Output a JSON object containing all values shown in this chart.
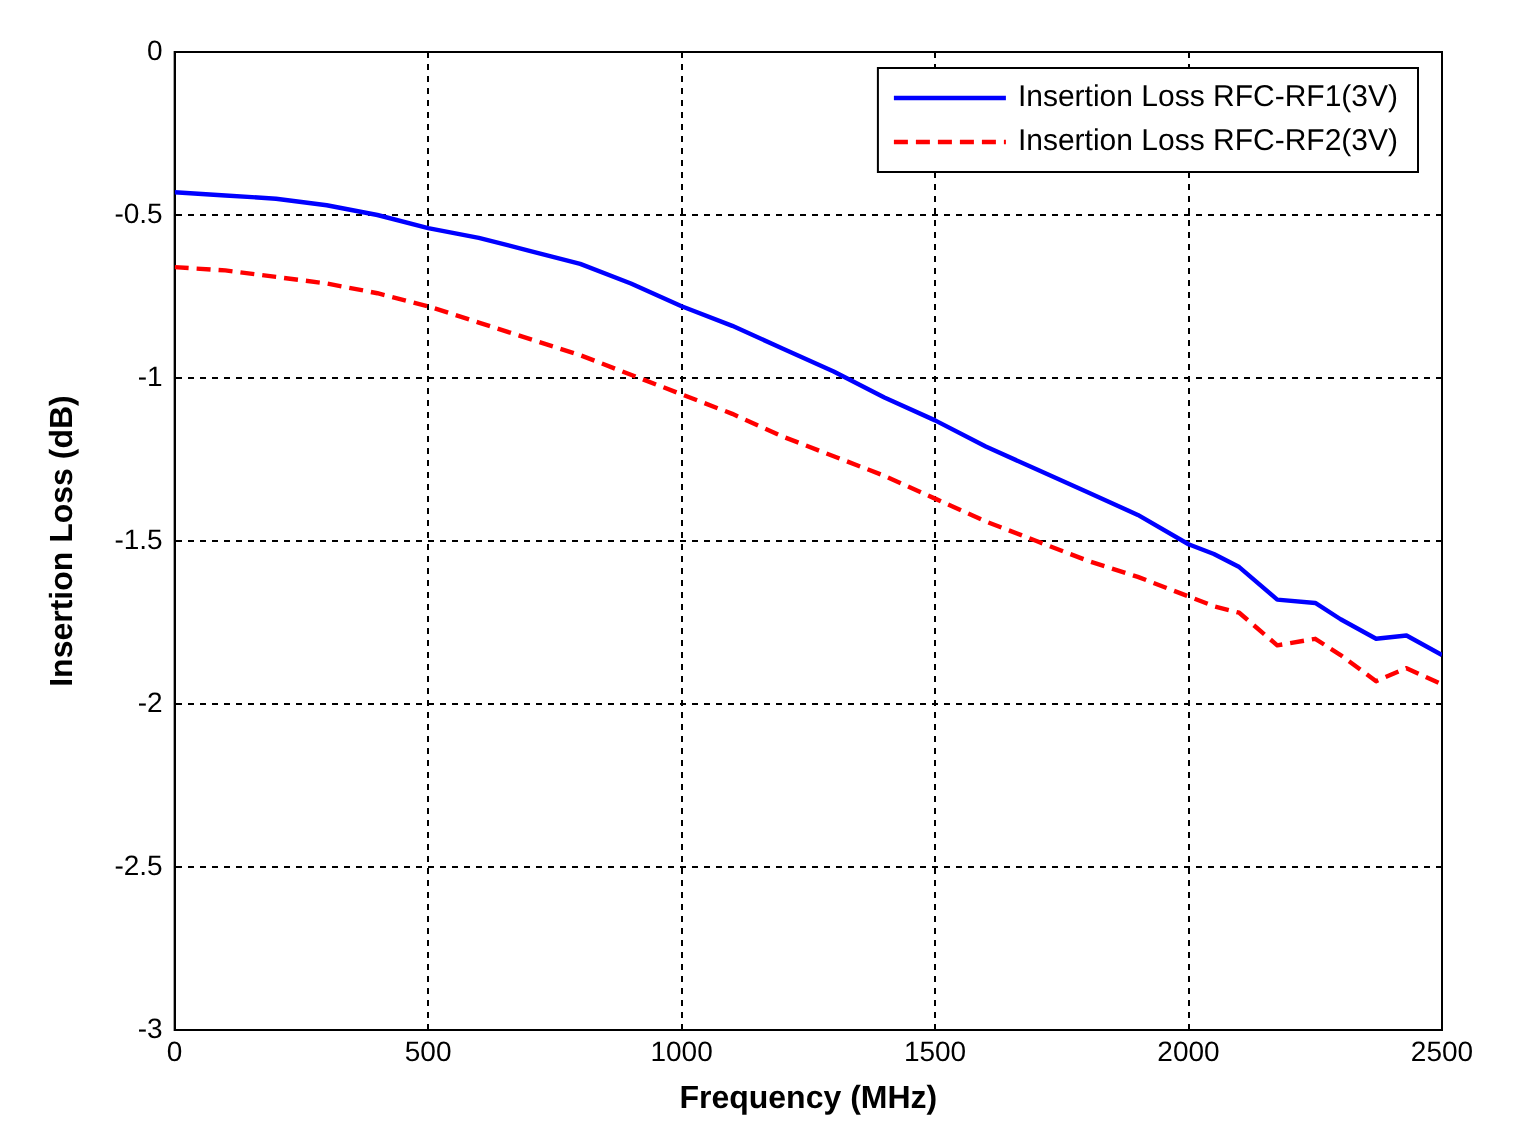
{
  "chart_data": {
    "type": "line",
    "xlabel": "Frequency (MHz)",
    "ylabel": "Insertion Loss (dB)",
    "x": [
      0,
      100,
      200,
      300,
      400,
      500,
      600,
      700,
      800,
      900,
      1000,
      1100,
      1200,
      1300,
      1400,
      1500,
      1600,
      1700,
      1800,
      1900,
      2000,
      2050,
      2100,
      2175,
      2250,
      2300,
      2370,
      2430,
      2500
    ],
    "series": [
      {
        "name": "Insertion Loss RFC-RF1(3V)",
        "color": "#0000ff",
        "line_style": "solid",
        "values": [
          -0.43,
          -0.44,
          -0.45,
          -0.47,
          -0.5,
          -0.54,
          -0.57,
          -0.61,
          -0.65,
          -0.71,
          -0.78,
          -0.84,
          -0.91,
          -0.98,
          -1.06,
          -1.13,
          -1.21,
          -1.28,
          -1.35,
          -1.42,
          -1.51,
          -1.54,
          -1.58,
          -1.68,
          -1.69,
          -1.74,
          -1.8,
          -1.79,
          -1.85
        ]
      },
      {
        "name": "Insertion Loss RFC-RF2(3V)",
        "color": "#ff0000",
        "line_style": "dashed",
        "values": [
          -0.66,
          -0.67,
          -0.69,
          -0.71,
          -0.74,
          -0.78,
          -0.83,
          -0.88,
          -0.93,
          -0.99,
          -1.05,
          -1.11,
          -1.18,
          -1.24,
          -1.3,
          -1.37,
          -1.44,
          -1.5,
          -1.56,
          -1.61,
          -1.67,
          -1.7,
          -1.72,
          -1.82,
          -1.8,
          -1.85,
          -1.93,
          -1.89,
          -1.94
        ]
      }
    ],
    "xlim": [
      0,
      2500
    ],
    "xticks": [
      0,
      500,
      1000,
      1500,
      2000,
      2500
    ],
    "ylim": [
      -3,
      0
    ],
    "yticks": [
      -3,
      -2.5,
      -2,
      -1.5,
      -1,
      -0.5,
      0
    ],
    "grid": true,
    "legend": "top right",
    "marker": "none"
  }
}
